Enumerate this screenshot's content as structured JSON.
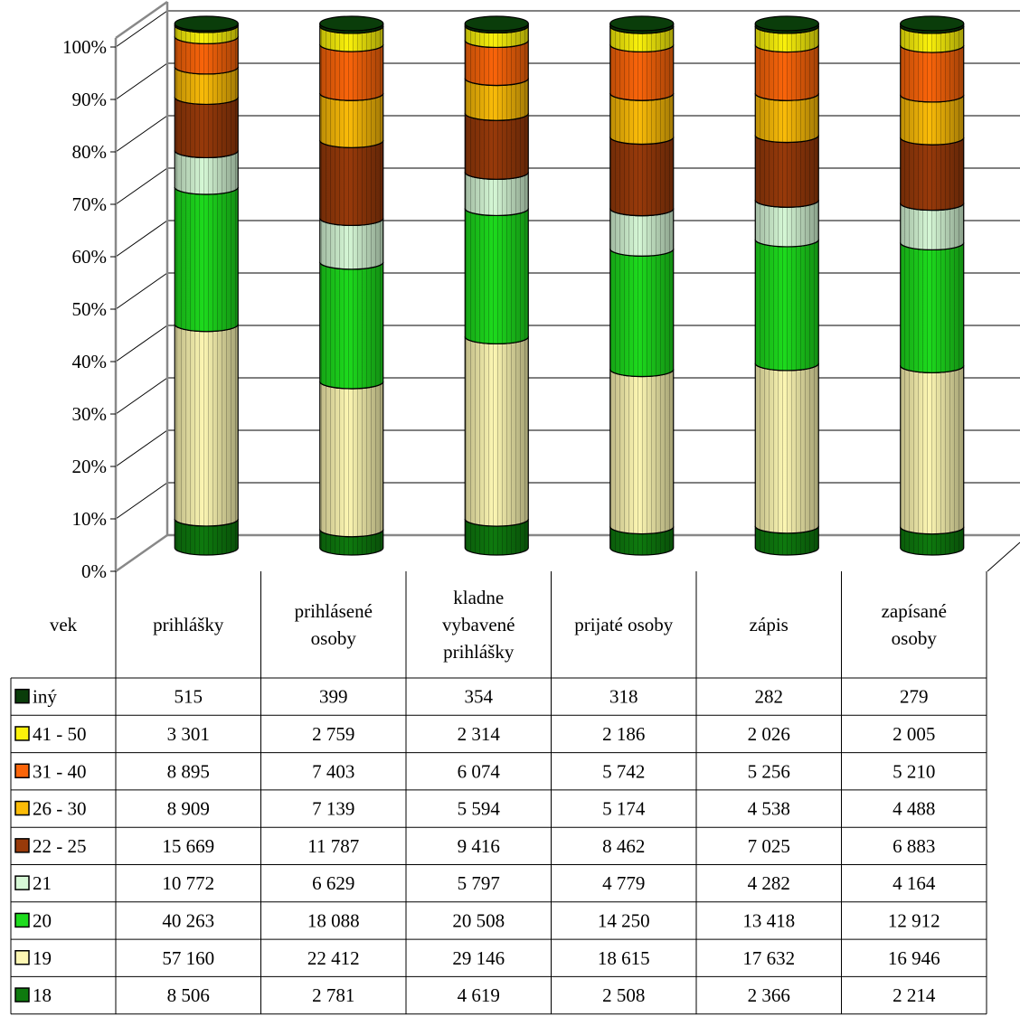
{
  "chart_data": {
    "type": "bar",
    "stacked": "percent",
    "categories": [
      "prihlášky",
      "prihlásené osoby",
      "kladne vybavené prihlášky",
      "prijaté osoby",
      "zápis",
      "zapísané osoby"
    ],
    "y_ticks": [
      "0%",
      "10%",
      "20%",
      "30%",
      "40%",
      "50%",
      "60%",
      "70%",
      "80%",
      "90%",
      "100%"
    ],
    "ylim": [
      0,
      100
    ],
    "grid": true,
    "table_header": "vek",
    "series": [
      {
        "name": "18",
        "color": "#0e7a0e",
        "values": [
          8506,
          2781,
          4619,
          2508,
          2366,
          2214
        ],
        "labels": [
          "8 506",
          "2 781",
          "4 619",
          "2 508",
          "2 366",
          "2 214"
        ]
      },
      {
        "name": "19",
        "color": "#fdf7b3",
        "values": [
          57160,
          22412,
          29146,
          18615,
          17632,
          16946
        ],
        "labels": [
          "57 160",
          "22 412",
          "29 146",
          "18 615",
          "17 632",
          "16 946"
        ]
      },
      {
        "name": "20",
        "color": "#1ddb1d",
        "values": [
          40263,
          18088,
          20508,
          14250,
          13418,
          12912
        ],
        "labels": [
          "40 263",
          "18 088",
          "20 508",
          "14 250",
          "13 418",
          "12 912"
        ]
      },
      {
        "name": "21",
        "color": "#d6f8d6",
        "values": [
          10772,
          6629,
          5797,
          4779,
          4282,
          4164
        ],
        "labels": [
          "10 772",
          "6 629",
          "5 797",
          "4 779",
          "4 282",
          "4 164"
        ]
      },
      {
        "name": "22 - 25",
        "color": "#983a0a",
        "values": [
          15669,
          11787,
          9416,
          8462,
          7025,
          6883
        ],
        "labels": [
          "15 669",
          "11 787",
          "9 416",
          "8 462",
          "7 025",
          "6 883"
        ]
      },
      {
        "name": "26 - 30",
        "color": "#fbbc08",
        "values": [
          8909,
          7139,
          5594,
          5174,
          4538,
          4488
        ],
        "labels": [
          "8 909",
          "7 139",
          "5 594",
          "5 174",
          "4 538",
          "4 488"
        ]
      },
      {
        "name": "31 - 40",
        "color": "#fb650a",
        "values": [
          8895,
          7403,
          6074,
          5742,
          5256,
          5210
        ],
        "labels": [
          "8 895",
          "7 403",
          "6 074",
          "5 742",
          "5 256",
          "5 210"
        ]
      },
      {
        "name": "41 - 50",
        "color": "#fbf20b",
        "values": [
          3301,
          2759,
          2314,
          2186,
          2026,
          2005
        ],
        "labels": [
          "3 301",
          "2 759",
          "2 314",
          "2 186",
          "2 026",
          "2 005"
        ]
      },
      {
        "name": "iný",
        "color": "#0a3d0a",
        "values": [
          515,
          399,
          354,
          318,
          282,
          279
        ],
        "labels": [
          "515",
          "399",
          "354",
          "318",
          "282",
          "279"
        ]
      }
    ]
  }
}
